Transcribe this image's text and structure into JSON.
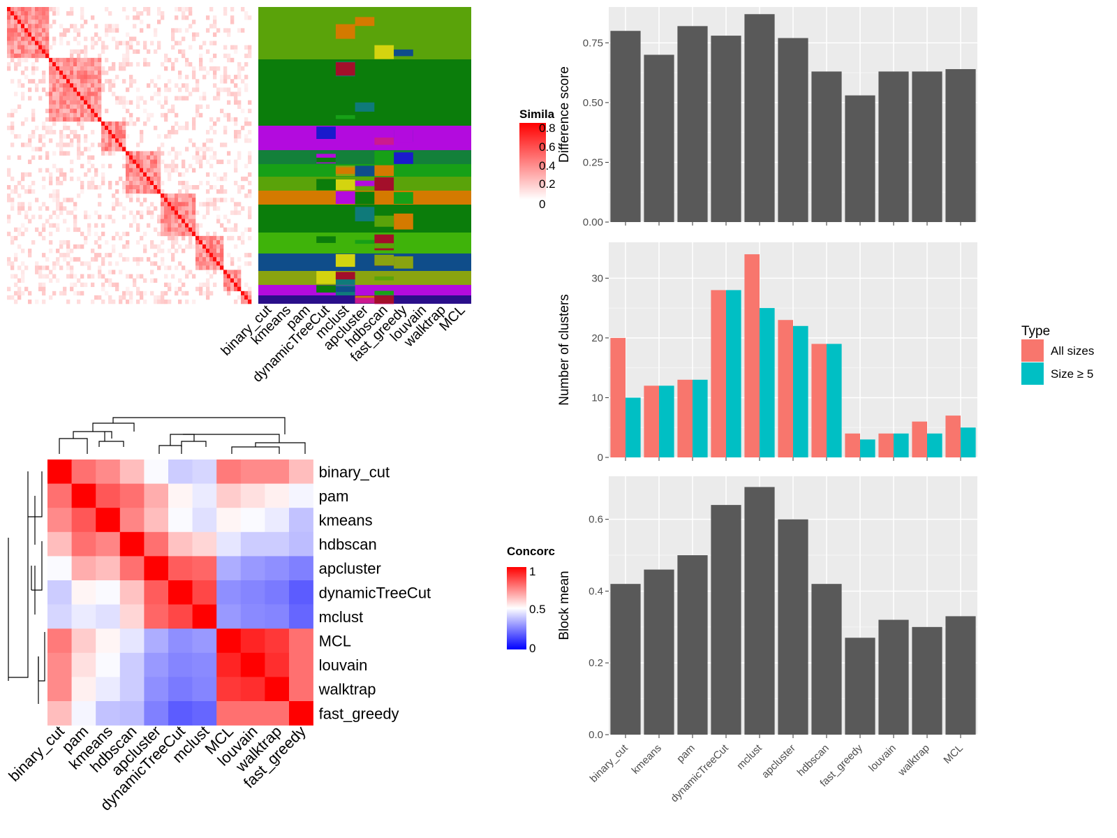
{
  "similarity_legend": {
    "title": "Simila",
    "ticks": [
      "0.8",
      "0.6",
      "0.4",
      "0.2",
      "0"
    ],
    "colors": [
      "#ffffff",
      "#ff0000"
    ]
  },
  "method_labels_top": [
    "binary_cut",
    "kmeans",
    "pam",
    "dynamicTreeCut",
    "mclust",
    "apcluster",
    "hdbscan",
    "fast_greedy",
    "louvain",
    "walktrap",
    "MCL"
  ],
  "concordance": {
    "legend_title": "Concorc",
    "legend_ticks": [
      "1",
      "0.5",
      "0"
    ],
    "colors": {
      "low": "#0000ff",
      "mid": "#ffffff",
      "high": "#ff0000"
    },
    "row_labels": [
      "binary_cut",
      "pam",
      "kmeans",
      "hdbscan",
      "apcluster",
      "dynamicTreeCut",
      "mclust",
      "MCL",
      "louvain",
      "walktrap",
      "fast_greedy"
    ],
    "col_labels": [
      "binary_cut",
      "pam",
      "kmeans",
      "hdbscan",
      "apcluster",
      "dynamicTreeCut",
      "mclust",
      "MCL",
      "louvain",
      "walktrap",
      "fast_greedy"
    ]
  },
  "cluster_legend": {
    "title": "Type",
    "items": [
      {
        "label": "All sizes",
        "color": "#f8766d"
      },
      {
        "label": "Size ≥ 5",
        "color": "#00bfc4"
      }
    ]
  },
  "bar_fill": "#595959",
  "panel_bg": "#ebebeb",
  "chart_data": [
    {
      "type": "heatmap",
      "name": "similarity-matrix",
      "colorbar": {
        "title": "Simila",
        "ticks": [
          0,
          0.2,
          0.4,
          0.6,
          0.8
        ]
      }
    },
    {
      "type": "heatmap",
      "name": "concordance",
      "rows": [
        "binary_cut",
        "pam",
        "kmeans",
        "hdbscan",
        "apcluster",
        "dynamicTreeCut",
        "mclust",
        "MCL",
        "louvain",
        "walktrap",
        "fast_greedy"
      ],
      "cols": [
        "binary_cut",
        "pam",
        "kmeans",
        "hdbscan",
        "apcluster",
        "dynamicTreeCut",
        "mclust",
        "MCL",
        "louvain",
        "walktrap",
        "fast_greedy"
      ],
      "values": [
        [
          1.0,
          0.78,
          0.73,
          0.63,
          0.49,
          0.4,
          0.42,
          0.76,
          0.73,
          0.73,
          0.63
        ],
        [
          0.78,
          1.0,
          0.83,
          0.78,
          0.66,
          0.52,
          0.46,
          0.6,
          0.56,
          0.53,
          0.48
        ],
        [
          0.73,
          0.83,
          1.0,
          0.74,
          0.63,
          0.49,
          0.44,
          0.52,
          0.49,
          0.46,
          0.38
        ],
        [
          0.63,
          0.78,
          0.74,
          1.0,
          0.78,
          0.62,
          0.58,
          0.45,
          0.4,
          0.4,
          0.37
        ],
        [
          0.49,
          0.66,
          0.63,
          0.78,
          1.0,
          0.82,
          0.8,
          0.34,
          0.3,
          0.28,
          0.25
        ],
        [
          0.4,
          0.52,
          0.49,
          0.62,
          0.82,
          1.0,
          0.86,
          0.28,
          0.26,
          0.24,
          0.18
        ],
        [
          0.42,
          0.46,
          0.44,
          0.58,
          0.8,
          0.86,
          1.0,
          0.3,
          0.27,
          0.26,
          0.2
        ],
        [
          0.76,
          0.6,
          0.52,
          0.45,
          0.34,
          0.28,
          0.3,
          1.0,
          0.93,
          0.89,
          0.78
        ],
        [
          0.73,
          0.56,
          0.49,
          0.4,
          0.3,
          0.26,
          0.27,
          0.93,
          1.0,
          0.91,
          0.78
        ],
        [
          0.73,
          0.53,
          0.46,
          0.4,
          0.28,
          0.24,
          0.26,
          0.89,
          0.91,
          1.0,
          0.78
        ],
        [
          0.63,
          0.48,
          0.38,
          0.37,
          0.25,
          0.18,
          0.2,
          0.78,
          0.78,
          0.78,
          1.0
        ]
      ],
      "colorbar": {
        "title": "Concorc",
        "ticks": [
          0,
          0.5,
          1
        ]
      }
    },
    {
      "type": "bar",
      "name": "difference-score",
      "categories": [
        "binary_cut",
        "kmeans",
        "pam",
        "dynamicTreeCut",
        "mclust",
        "apcluster",
        "hdbscan",
        "fast_greedy",
        "louvain",
        "walktrap",
        "MCL"
      ],
      "values": [
        0.8,
        0.7,
        0.82,
        0.78,
        0.87,
        0.77,
        0.63,
        0.53,
        0.63,
        0.63,
        0.64
      ],
      "ylabel": "Difference score",
      "ylim": [
        0,
        0.9
      ],
      "yticks": [
        "0.00",
        "0.25",
        "0.50",
        "0.75"
      ],
      "ytick_values": [
        0,
        0.25,
        0.5,
        0.75
      ]
    },
    {
      "type": "bar",
      "name": "number-of-clusters",
      "categories": [
        "binary_cut",
        "kmeans",
        "pam",
        "dynamicTreeCut",
        "mclust",
        "apcluster",
        "hdbscan",
        "fast_greedy",
        "louvain",
        "walktrap",
        "MCL"
      ],
      "series": [
        {
          "name": "All sizes",
          "values": [
            20,
            12,
            13,
            28,
            34,
            23,
            19,
            4,
            4,
            6,
            7
          ]
        },
        {
          "name": "Size ≥ 5",
          "values": [
            10,
            12,
            13,
            28,
            25,
            22,
            19,
            3,
            4,
            4,
            5
          ]
        }
      ],
      "ylabel": "Number of clusters",
      "ylim": [
        0,
        36
      ],
      "yticks": [
        "0",
        "10",
        "20",
        "30"
      ],
      "ytick_values": [
        0,
        10,
        20,
        30
      ],
      "legend": "right"
    },
    {
      "type": "bar",
      "name": "block-mean",
      "categories": [
        "binary_cut",
        "kmeans",
        "pam",
        "dynamicTreeCut",
        "mclust",
        "apcluster",
        "hdbscan",
        "fast_greedy",
        "louvain",
        "walktrap",
        "MCL"
      ],
      "values": [
        0.42,
        0.46,
        0.5,
        0.64,
        0.69,
        0.6,
        0.42,
        0.27,
        0.32,
        0.3,
        0.33
      ],
      "ylabel": "Block mean",
      "ylim": [
        0,
        0.72
      ],
      "yticks": [
        "0.0",
        "0.2",
        "0.4",
        "0.6"
      ],
      "ytick_values": [
        0,
        0.2,
        0.4,
        0.6
      ]
    }
  ]
}
